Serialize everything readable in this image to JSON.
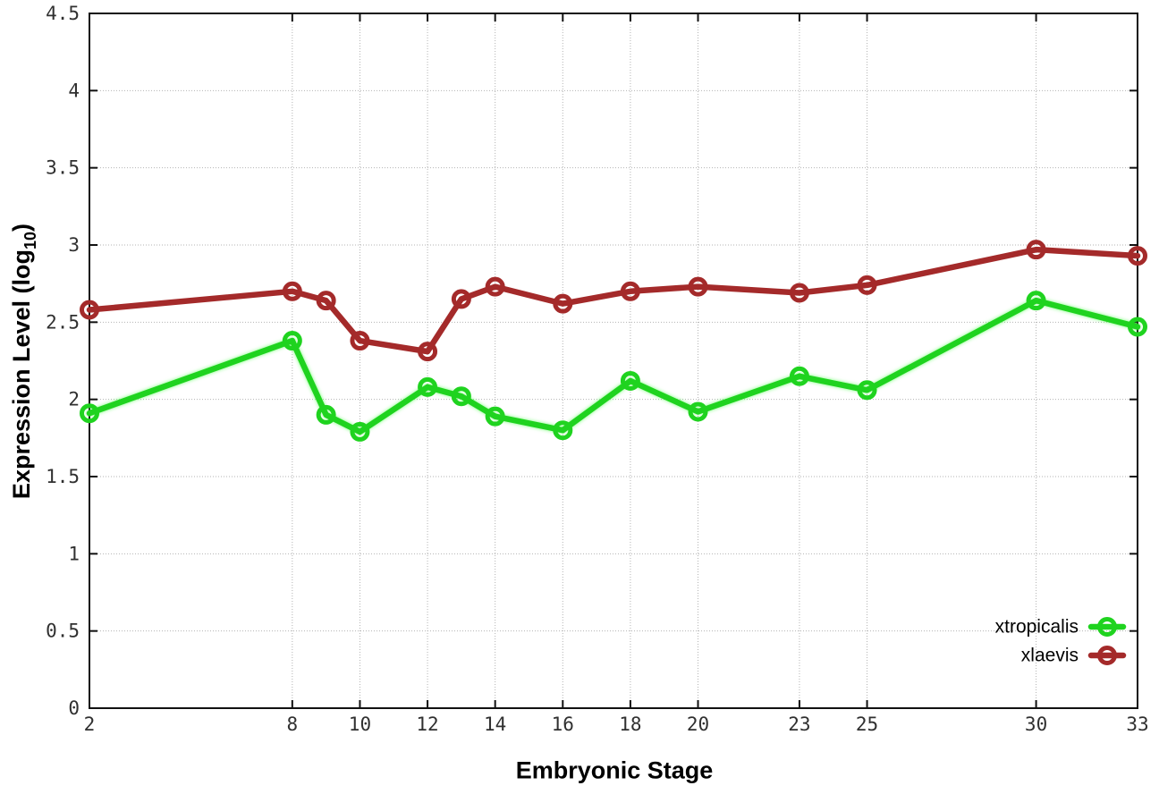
{
  "chart_data": {
    "type": "line",
    "title": "",
    "xlabel": "Embryonic Stage",
    "ylabel": "Expression Level (log10)",
    "ylabel_parts": {
      "prefix": "Expression Level (log",
      "subscript": "10",
      "suffix": ")"
    },
    "x": [
      2,
      8,
      9,
      10,
      12,
      13,
      14,
      16,
      18,
      20,
      23,
      25,
      30,
      33
    ],
    "xticks": [
      2,
      8,
      10,
      12,
      14,
      16,
      18,
      20,
      23,
      25,
      30,
      33
    ],
    "yticks": [
      0,
      0.5,
      1,
      1.5,
      2,
      2.5,
      3,
      3.5,
      4,
      4.5
    ],
    "xlim": [
      2,
      33
    ],
    "ylim": [
      0,
      4.5
    ],
    "grid": true,
    "legend_position": "bottom-right-inside",
    "series": [
      {
        "name": "xtropicalis",
        "color": "#1fd31f",
        "values": [
          1.91,
          2.38,
          1.9,
          1.79,
          2.08,
          2.02,
          1.89,
          1.8,
          2.12,
          1.92,
          2.15,
          2.06,
          2.64,
          2.47
        ]
      },
      {
        "name": "xlaevis",
        "color": "#a42a2a",
        "values": [
          2.58,
          2.7,
          2.64,
          2.38,
          2.31,
          2.65,
          2.73,
          2.62,
          2.7,
          2.73,
          2.69,
          2.74,
          2.97,
          2.93
        ]
      }
    ],
    "style": {
      "grid_color": "#b3b3b3",
      "border_color": "#111111",
      "tick_label_color": "#303030",
      "legend_text_color": "#000000"
    }
  }
}
